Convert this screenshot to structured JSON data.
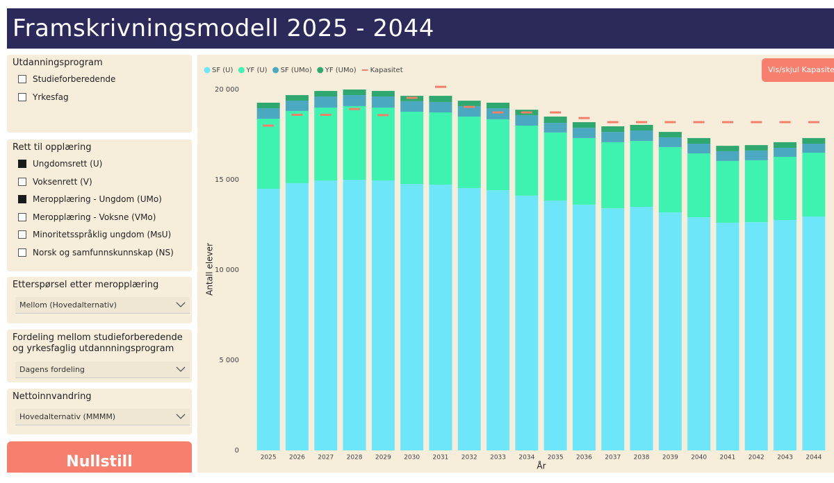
{
  "header": {
    "title": "Framskrivningsmodell 2025 - 2044"
  },
  "filters": [
    {
      "title": "Utdanningsprogram",
      "options": [
        {
          "label": "Studieforberedende",
          "checked": false
        },
        {
          "label": "Yrkesfag",
          "checked": false
        }
      ]
    },
    {
      "title": "Rett til opplæring",
      "options": [
        {
          "label": "Ungdomsrett (U)",
          "checked": true
        },
        {
          "label": "Voksenrett (V)",
          "checked": false
        },
        {
          "label": "Meropplæring - Ungdom (UMo)",
          "checked": true
        },
        {
          "label": "Meropplæring - Voksne (VMo)",
          "checked": false
        },
        {
          "label": "Minoritetsspråklig ungdom (MsU)",
          "checked": false
        },
        {
          "label": "Norsk og samfunnskunnskap (NS)",
          "checked": false
        }
      ]
    },
    {
      "title": "Etterspørsel etter meropplæring",
      "selected": "Mellom (Hovedalternativ)"
    },
    {
      "title": "Fordeling mellom studieforberedende og yrkesfaglig utdannningsprogram",
      "selected": "Dagens fordeling"
    },
    {
      "title": "Nettoinnvandring",
      "selected": "Hovedalternativ (MMMM)"
    }
  ],
  "reset_button": "Nullstill",
  "toggle_button": "Vis/skjul Kapasitet",
  "chart_data": {
    "type": "stacked_bar",
    "x_label": "År",
    "y_label": "Antall elever",
    "categories": [
      "2025",
      "2026",
      "2027",
      "2028",
      "2029",
      "2030",
      "2031",
      "2032",
      "2033",
      "2034",
      "2035",
      "2036",
      "2037",
      "2038",
      "2039",
      "2040",
      "2041",
      "2042",
      "2043",
      "2044"
    ],
    "series": [
      {
        "name": "SF (U)",
        "color": "#6ee6fa",
        "values": [
          14500,
          14810,
          14960,
          15000,
          14960,
          14770,
          14730,
          14540,
          14420,
          14120,
          13850,
          13620,
          13420,
          13500,
          13190,
          12920,
          12620,
          12650,
          12770,
          12960
        ]
      },
      {
        "name": "YF (U)",
        "color": "#3ef2b0",
        "values": [
          3885,
          4000,
          4040,
          4080,
          4040,
          4000,
          4000,
          3960,
          3930,
          3880,
          3770,
          3690,
          3660,
          3650,
          3620,
          3540,
          3420,
          3430,
          3500,
          3540
        ]
      },
      {
        "name": "SF (UMo)",
        "color": "#4aa8c0",
        "values": [
          575,
          575,
          615,
          610,
          615,
          580,
          580,
          580,
          610,
          580,
          530,
          570,
          570,
          580,
          540,
          540,
          540,
          540,
          500,
          500
        ]
      },
      {
        "name": "YF (UMo)",
        "color": "#2ea86e",
        "values": [
          310,
          305,
          305,
          310,
          305,
          300,
          340,
          300,
          310,
          300,
          350,
          310,
          310,
          310,
          300,
          310,
          300,
          300,
          310,
          310
        ]
      }
    ],
    "capacity": {
      "name": "Kapasitet",
      "color": "#f0806a",
      "values": [
        18000,
        18600,
        18600,
        18920,
        18580,
        19540,
        20150,
        19040,
        18730,
        18730,
        18730,
        18420,
        18190,
        18190,
        18190,
        18190,
        18190,
        18190,
        18190,
        18190
      ]
    },
    "ylim": [
      0,
      20000
    ],
    "yticks": [
      0,
      {
        "value": 5000,
        "label": "5 000"
      },
      {
        "value": 10000,
        "label": "10 000"
      },
      {
        "value": 15000,
        "label": "15 000"
      },
      {
        "value": 20000,
        "label": "20 000"
      }
    ],
    "grid": false
  }
}
